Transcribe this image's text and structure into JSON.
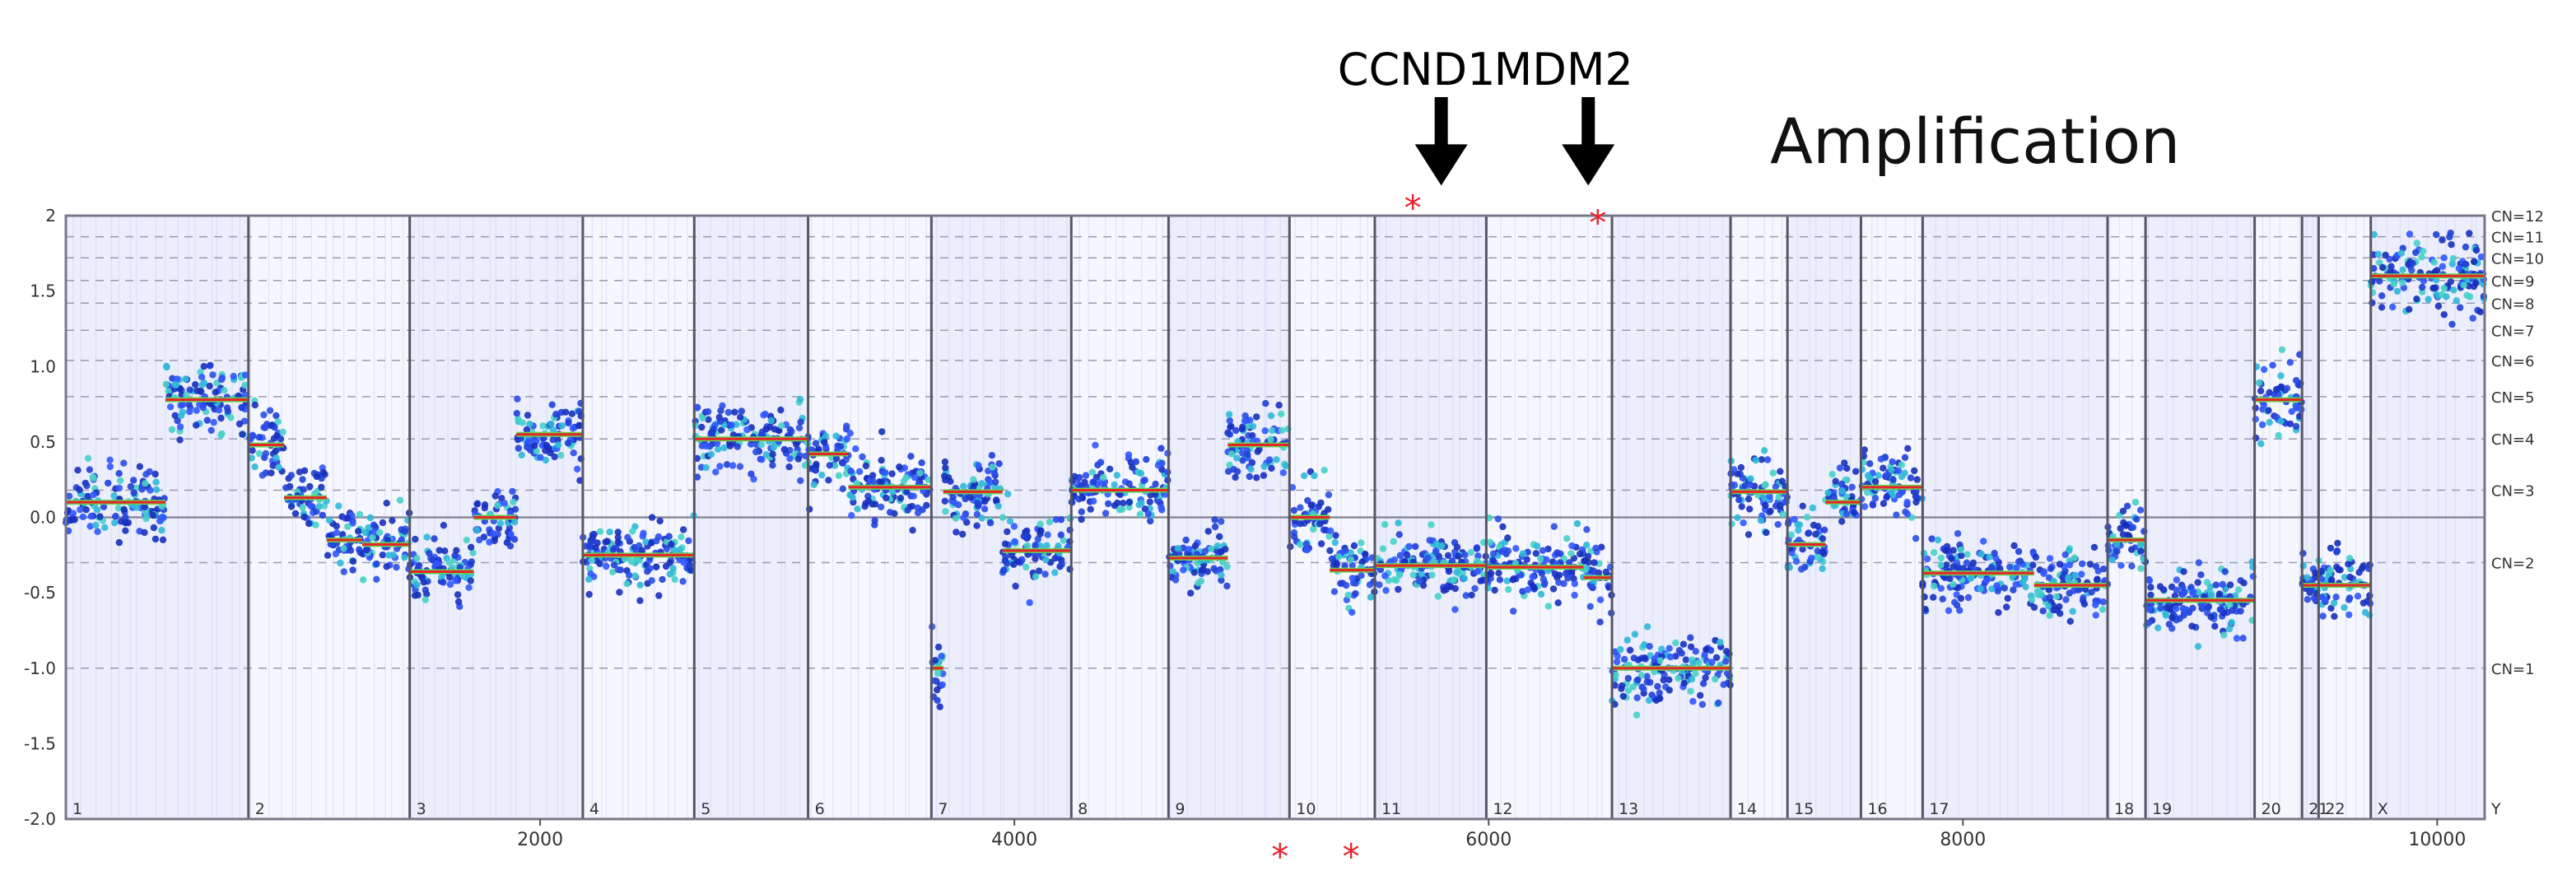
{
  "chart_data": {
    "type": "scatter",
    "title": "Amplification",
    "xlim": [
      0,
      10200
    ],
    "ylim": [
      -2,
      2
    ],
    "grid": true,
    "x_ticks": [
      2000,
      4000,
      6000,
      8000,
      10000
    ],
    "x_tick_labels": [
      "2000",
      "4000",
      "6000",
      "8000",
      "10000"
    ],
    "y_ticks": [
      -2.0,
      -1.5,
      -1.0,
      -0.5,
      0.0,
      0.5,
      1.0,
      1.5,
      2.0
    ],
    "y_tick_labels": [
      "-2.0",
      "-1.5",
      "-1.0",
      "-0.5",
      "0.0",
      "0.5",
      "1.0",
      "1.5",
      "2"
    ],
    "copy_number_lines": [
      {
        "label": "CN=1",
        "y": -1.0
      },
      {
        "label": "CN=2",
        "y": -0.3
      },
      {
        "label": "CN=3",
        "y": 0.18
      },
      {
        "label": "CN=4",
        "y": 0.52
      },
      {
        "label": "CN=5",
        "y": 0.8
      },
      {
        "label": "CN=6",
        "y": 1.04
      },
      {
        "label": "CN=7",
        "y": 1.24
      },
      {
        "label": "CN=8",
        "y": 1.42
      },
      {
        "label": "CN=9",
        "y": 1.57
      },
      {
        "label": "CN=10",
        "y": 1.72
      },
      {
        "label": "CN=11",
        "y": 1.86
      },
      {
        "label": "CN=12",
        "y": 2.0
      }
    ],
    "chromosomes": [
      {
        "label": "1",
        "start": 0,
        "end": 770
      },
      {
        "label": "2",
        "start": 770,
        "end": 1450
      },
      {
        "label": "3",
        "start": 1450,
        "end": 2180
      },
      {
        "label": "4",
        "start": 2180,
        "end": 2650
      },
      {
        "label": "5",
        "start": 2650,
        "end": 3130
      },
      {
        "label": "6",
        "start": 3130,
        "end": 3650
      },
      {
        "label": "7",
        "start": 3650,
        "end": 4240
      },
      {
        "label": "8",
        "start": 4240,
        "end": 4650
      },
      {
        "label": "9",
        "start": 4650,
        "end": 5160
      },
      {
        "label": "10",
        "start": 5160,
        "end": 5520
      },
      {
        "label": "11",
        "start": 5520,
        "end": 5990
      },
      {
        "label": "12",
        "start": 5990,
        "end": 6520
      },
      {
        "label": "13",
        "start": 6520,
        "end": 7020
      },
      {
        "label": "14",
        "start": 7020,
        "end": 7260
      },
      {
        "label": "15",
        "start": 7260,
        "end": 7570
      },
      {
        "label": "16",
        "start": 7570,
        "end": 7830
      },
      {
        "label": "17",
        "start": 7830,
        "end": 8610
      },
      {
        "label": "18",
        "start": 8610,
        "end": 8770
      },
      {
        "label": "19",
        "start": 8770,
        "end": 9230
      },
      {
        "label": "20",
        "start": 9230,
        "end": 9430
      },
      {
        "label": "21",
        "start": 9430,
        "end": 9500
      },
      {
        "label": "22",
        "start": 9500,
        "end": 9720
      },
      {
        "label": "X",
        "start": 9720,
        "end": 10200
      },
      {
        "label": "Y",
        "start": 10200,
        "end": 10200
      }
    ],
    "segments": [
      {
        "start": 0,
        "end": 420,
        "value": 0.1
      },
      {
        "start": 420,
        "end": 770,
        "value": 0.78
      },
      {
        "start": 770,
        "end": 920,
        "value": 0.48
      },
      {
        "start": 920,
        "end": 1100,
        "value": 0.13
      },
      {
        "start": 1100,
        "end": 1250,
        "value": -0.15
      },
      {
        "start": 1250,
        "end": 1450,
        "value": -0.18
      },
      {
        "start": 1450,
        "end": 1720,
        "value": -0.36
      },
      {
        "start": 1720,
        "end": 1900,
        "value": 0.0
      },
      {
        "start": 1900,
        "end": 2180,
        "value": 0.55
      },
      {
        "start": 2180,
        "end": 2650,
        "value": -0.25
      },
      {
        "start": 2650,
        "end": 3130,
        "value": 0.52
      },
      {
        "start": 3130,
        "end": 3300,
        "value": 0.42
      },
      {
        "start": 3300,
        "end": 3650,
        "value": 0.2
      },
      {
        "start": 3650,
        "end": 3700,
        "value": -1.0
      },
      {
        "start": 3700,
        "end": 3950,
        "value": 0.17
      },
      {
        "start": 3950,
        "end": 4240,
        "value": -0.22
      },
      {
        "start": 4240,
        "end": 4650,
        "value": 0.18
      },
      {
        "start": 4650,
        "end": 4900,
        "value": -0.27
      },
      {
        "start": 4900,
        "end": 5160,
        "value": 0.48
      },
      {
        "start": 5160,
        "end": 5330,
        "value": 0.0
      },
      {
        "start": 5330,
        "end": 5520,
        "value": -0.35
      },
      {
        "start": 5520,
        "end": 5990,
        "value": -0.32
      },
      {
        "start": 5990,
        "end": 6400,
        "value": -0.33
      },
      {
        "start": 6400,
        "end": 6520,
        "value": -0.4
      },
      {
        "start": 6520,
        "end": 7020,
        "value": -1.0
      },
      {
        "start": 7020,
        "end": 7260,
        "value": 0.17
      },
      {
        "start": 7260,
        "end": 7420,
        "value": -0.18
      },
      {
        "start": 7420,
        "end": 7570,
        "value": 0.1
      },
      {
        "start": 7570,
        "end": 7830,
        "value": 0.2
      },
      {
        "start": 7830,
        "end": 8300,
        "value": -0.37
      },
      {
        "start": 8300,
        "end": 8610,
        "value": -0.45
      },
      {
        "start": 8610,
        "end": 8770,
        "value": -0.15
      },
      {
        "start": 8770,
        "end": 9230,
        "value": -0.55
      },
      {
        "start": 9230,
        "end": 9430,
        "value": 0.78
      },
      {
        "start": 9430,
        "end": 9720,
        "value": -0.45
      },
      {
        "start": 9720,
        "end": 10200,
        "value": 1.6
      }
    ],
    "annotations": [
      {
        "label": "CCND1",
        "x": 5800,
        "arrow_y_end": 2.2
      },
      {
        "label": "MDM2",
        "x": 6420,
        "arrow_y_end": 2.2
      }
    ],
    "outlier_markers": [
      {
        "x": 5680,
        "y": 2.05
      },
      {
        "x": 6460,
        "y": 1.95
      },
      {
        "x": 5120,
        "y": -2.25
      },
      {
        "x": 5420,
        "y": -2.25
      }
    ]
  }
}
